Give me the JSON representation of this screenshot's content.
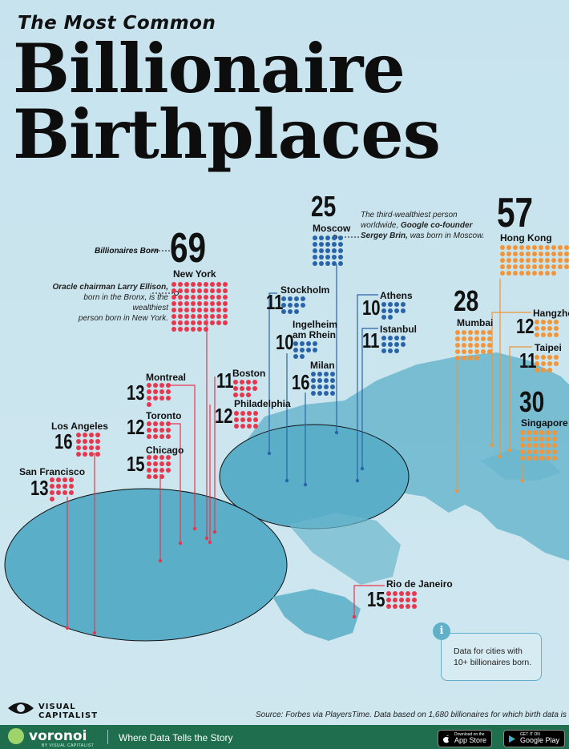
{
  "header": {
    "subtitle": "The Most Common",
    "title_line1": "Billionaire",
    "title_line2": "Birthplaces"
  },
  "legend": {
    "label": "Billionaires Born"
  },
  "annotations": {
    "moscow_note_plain1": "The third-wealthiest person",
    "moscow_note_plain2": "worldwide, ",
    "moscow_note_bold": "Google co-founder",
    "moscow_note_bold2": "Sergey Brin,",
    "moscow_note_plain3": " was born in Moscow.",
    "ny_note_bold": "Oracle chairman Larry Ellison,",
    "ny_note_plain1": "born in the Bronx, is the wealthiest",
    "ny_note_plain2": "person born in New York."
  },
  "colors": {
    "americas": "#e8364d",
    "europe": "#2a64a8",
    "asia": "#f0953a",
    "land": "#6ab6cd",
    "ocean": "#c8e4ee"
  },
  "cities": [
    {
      "name": "New York",
      "count": "69",
      "region": "americas"
    },
    {
      "name": "Boston",
      "count": "11",
      "region": "americas"
    },
    {
      "name": "Montreal",
      "count": "13",
      "region": "americas"
    },
    {
      "name": "Philadelphia",
      "count": "12",
      "region": "americas"
    },
    {
      "name": "Toronto",
      "count": "12",
      "region": "americas"
    },
    {
      "name": "Los Angeles",
      "count": "16",
      "region": "americas"
    },
    {
      "name": "Chicago",
      "count": "15",
      "region": "americas"
    },
    {
      "name": "San Francisco",
      "count": "13",
      "region": "americas"
    },
    {
      "name": "Rio de Janeiro",
      "count": "15",
      "region": "americas"
    },
    {
      "name": "Moscow",
      "count": "25",
      "region": "europe"
    },
    {
      "name": "Stockholm",
      "count": "11",
      "region": "europe"
    },
    {
      "name": "Ingelheim am Rhein",
      "count": "10",
      "region": "europe"
    },
    {
      "name": "Milan",
      "count": "16",
      "region": "europe"
    },
    {
      "name": "Athens",
      "count": "10",
      "region": "europe"
    },
    {
      "name": "Istanbul",
      "count": "11",
      "region": "europe"
    },
    {
      "name": "Hong Kong",
      "count": "57",
      "region": "asia"
    },
    {
      "name": "Mumbai",
      "count": "28",
      "region": "asia"
    },
    {
      "name": "Hangzhou",
      "count": "12",
      "region": "asia"
    },
    {
      "name": "Taipei",
      "count": "11",
      "region": "asia"
    },
    {
      "name": "Singapore",
      "count": "30",
      "region": "asia"
    }
  ],
  "info": {
    "icon": "i",
    "text": "Data for cities with 10+ billionaires born."
  },
  "footer": {
    "source": "Source: Forbes via PlayersTime. Data based on 1,680 billionaires for which birth data is available.",
    "vc_line1": "VISUAL",
    "vc_line2": "CAPITALIST",
    "brand": "voronoi",
    "brand_sub": "BY VISUAL CAPITALIST",
    "tagline": "Where Data Tells the Story",
    "app_store_small": "Download on the",
    "app_store": "App Store",
    "google_small": "GET IT ON",
    "google": "Google Play"
  }
}
